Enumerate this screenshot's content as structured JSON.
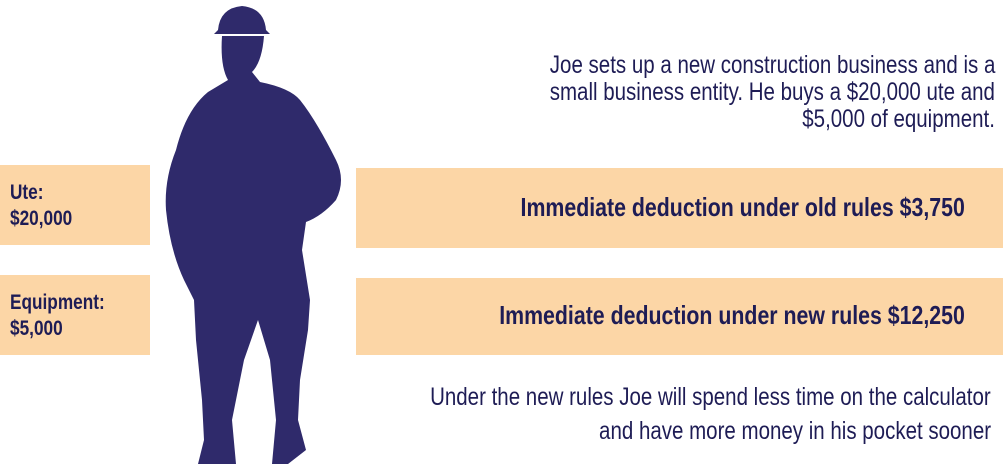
{
  "intro": [
    "Joe sets up a new construction business and is a",
    "small business entity. He buys a $20,000 ute and",
    "$5,000 of equipment."
  ],
  "items": [
    {
      "label": "Ute:",
      "amount": "$20,000"
    },
    {
      "label": "Equipment:",
      "amount": "$5,000"
    }
  ],
  "deductions": [
    "Immediate deduction under old rules $3,750",
    "Immediate deduction under new rules $12,250"
  ],
  "conclusion": [
    "Under the new rules Joe will spend less time on the calculator",
    "and have more money in his pocket sooner"
  ]
}
